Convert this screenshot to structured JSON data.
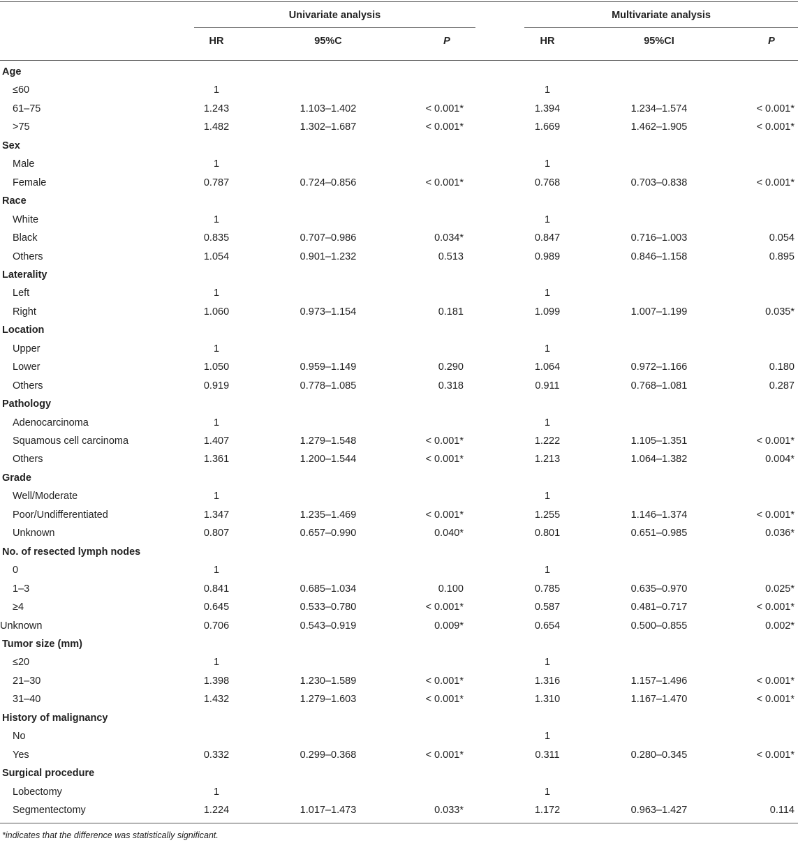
{
  "header": {
    "univariate": "Univariate analysis",
    "multivariate": "Multivariate analysis",
    "uni_cols": [
      "HR",
      "95%C",
      "P"
    ],
    "multi_cols": [
      "HR",
      "95%CI",
      "P"
    ]
  },
  "rows": [
    {
      "type": "cat",
      "label": "Age"
    },
    {
      "type": "sub",
      "label": "≤60",
      "uhr": "1",
      "uci": "",
      "up": "",
      "mhr": "1",
      "mci": "",
      "mp": ""
    },
    {
      "type": "sub",
      "label": "61–75",
      "uhr": "1.243",
      "uci": "1.103–1.402",
      "up": "< 0.001*",
      "mhr": "1.394",
      "mci": "1.234–1.574",
      "mp": "< 0.001*"
    },
    {
      "type": "sub",
      "label": ">75",
      "uhr": "1.482",
      "uci": "1.302–1.687",
      "up": "< 0.001*",
      "mhr": "1.669",
      "mci": "1.462–1.905",
      "mp": "< 0.001*"
    },
    {
      "type": "cat",
      "label": "Sex"
    },
    {
      "type": "sub",
      "label": "Male",
      "uhr": "1",
      "uci": "",
      "up": "",
      "mhr": "1",
      "mci": "",
      "mp": ""
    },
    {
      "type": "sub",
      "label": "Female",
      "uhr": "0.787",
      "uci": "0.724–0.856",
      "up": "< 0.001*",
      "mhr": "0.768",
      "mci": "0.703–0.838",
      "mp": "< 0.001*"
    },
    {
      "type": "cat",
      "label": "Race"
    },
    {
      "type": "sub",
      "label": "White",
      "uhr": "1",
      "uci": "",
      "up": "",
      "mhr": "1",
      "mci": "",
      "mp": ""
    },
    {
      "type": "sub",
      "label": "Black",
      "uhr": "0.835",
      "uci": "0.707–0.986",
      "up": "0.034*",
      "mhr": "0.847",
      "mci": "0.716–1.003",
      "mp": "0.054"
    },
    {
      "type": "sub",
      "label": "Others",
      "uhr": "1.054",
      "uci": "0.901–1.232",
      "up": "0.513",
      "mhr": "0.989",
      "mci": "0.846–1.158",
      "mp": "0.895"
    },
    {
      "type": "cat",
      "label": "Laterality"
    },
    {
      "type": "sub",
      "label": "Left",
      "uhr": "1",
      "uci": "",
      "up": "",
      "mhr": "1",
      "mci": "",
      "mp": ""
    },
    {
      "type": "sub",
      "label": "Right",
      "uhr": "1.060",
      "uci": "0.973–1.154",
      "up": "0.181",
      "mhr": "1.099",
      "mci": "1.007–1.199",
      "mp": "0.035*"
    },
    {
      "type": "cat",
      "label": "Location"
    },
    {
      "type": "sub",
      "label": "Upper",
      "uhr": "1",
      "uci": "",
      "up": "",
      "mhr": "1",
      "mci": "",
      "mp": ""
    },
    {
      "type": "sub",
      "label": "Lower",
      "uhr": "1.050",
      "uci": "0.959–1.149",
      "up": "0.290",
      "mhr": "1.064",
      "mci": "0.972–1.166",
      "mp": "0.180"
    },
    {
      "type": "sub",
      "label": "Others",
      "uhr": "0.919",
      "uci": "0.778–1.085",
      "up": "0.318",
      "mhr": "0.911",
      "mci": "0.768–1.081",
      "mp": "0.287"
    },
    {
      "type": "cat",
      "label": "Pathology"
    },
    {
      "type": "sub",
      "label": "Adenocarcinoma",
      "uhr": "1",
      "uci": "",
      "up": "",
      "mhr": "1",
      "mci": "",
      "mp": ""
    },
    {
      "type": "sub",
      "label": "Squamous cell carcinoma",
      "uhr": "1.407",
      "uci": "1.279–1.548",
      "up": "< 0.001*",
      "mhr": "1.222",
      "mci": "1.105–1.351",
      "mp": "< 0.001*"
    },
    {
      "type": "sub",
      "label": "Others",
      "uhr": "1.361",
      "uci": "1.200–1.544",
      "up": "< 0.001*",
      "mhr": "1.213",
      "mci": "1.064–1.382",
      "mp": "0.004*"
    },
    {
      "type": "cat",
      "label": "Grade"
    },
    {
      "type": "sub",
      "label": "Well/Moderate",
      "uhr": "1",
      "uci": "",
      "up": "",
      "mhr": "1",
      "mci": "",
      "mp": ""
    },
    {
      "type": "sub",
      "label": "Poor/Undifferentiated",
      "uhr": "1.347",
      "uci": "1.235–1.469",
      "up": "< 0.001*",
      "mhr": "1.255",
      "mci": "1.146–1.374",
      "mp": "< 0.001*"
    },
    {
      "type": "sub",
      "label": "Unknown",
      "uhr": "0.807",
      "uci": "0.657–0.990",
      "up": "0.040*",
      "mhr": "0.801",
      "mci": "0.651–0.985",
      "mp": "0.036*"
    },
    {
      "type": "cat",
      "label": "No. of resected lymph nodes"
    },
    {
      "type": "sub",
      "label": "0",
      "uhr": "1",
      "uci": "",
      "up": "",
      "mhr": "1",
      "mci": "",
      "mp": ""
    },
    {
      "type": "sub",
      "label": "1–3",
      "uhr": "0.841",
      "uci": "0.685–1.034",
      "up": "0.100",
      "mhr": "0.785",
      "mci": "0.635–0.970",
      "mp": "0.025*"
    },
    {
      "type": "sub",
      "label": "≥4",
      "uhr": "0.645",
      "uci": "0.533–0.780",
      "up": "< 0.001*",
      "mhr": "0.587",
      "mci": "0.481–0.717",
      "mp": "< 0.001*"
    },
    {
      "type": "plain",
      "label": "Unknown",
      "uhr": "0.706",
      "uci": "0.543–0.919",
      "up": "0.009*",
      "mhr": "0.654",
      "mci": "0.500–0.855",
      "mp": "0.002*"
    },
    {
      "type": "cat",
      "label": "Tumor size (mm)"
    },
    {
      "type": "sub",
      "label": "≤20",
      "uhr": "1",
      "uci": "",
      "up": "",
      "mhr": "1",
      "mci": "",
      "mp": ""
    },
    {
      "type": "sub",
      "label": "21–30",
      "uhr": "1.398",
      "uci": "1.230–1.589",
      "up": "< 0.001*",
      "mhr": "1.316",
      "mci": "1.157–1.496",
      "mp": "< 0.001*"
    },
    {
      "type": "sub",
      "label": "31–40",
      "uhr": "1.432",
      "uci": "1.279–1.603",
      "up": "< 0.001*",
      "mhr": "1.310",
      "mci": "1.167–1.470",
      "mp": "< 0.001*"
    },
    {
      "type": "cat",
      "label": "History of malignancy"
    },
    {
      "type": "sub",
      "label": "No",
      "uhr": "",
      "uci": "",
      "up": "",
      "mhr": "1",
      "mci": "",
      "mp": ""
    },
    {
      "type": "sub",
      "label": "Yes",
      "uhr": "0.332",
      "uci": "0.299–0.368",
      "up": "< 0.001*",
      "mhr": "0.311",
      "mci": "0.280–0.345",
      "mp": "< 0.001*"
    },
    {
      "type": "cat",
      "label": "Surgical procedure"
    },
    {
      "type": "sub",
      "label": "Lobectomy",
      "uhr": "1",
      "uci": "",
      "up": "",
      "mhr": "1",
      "mci": "",
      "mp": ""
    },
    {
      "type": "sub",
      "label": "Segmentectomy",
      "uhr": "1.224",
      "uci": "1.017–1.473",
      "up": "0.033*",
      "mhr": "1.172",
      "mci": "0.963–1.427",
      "mp": "0.114"
    }
  ],
  "footnote": "*indicates that the difference was statistically significant."
}
